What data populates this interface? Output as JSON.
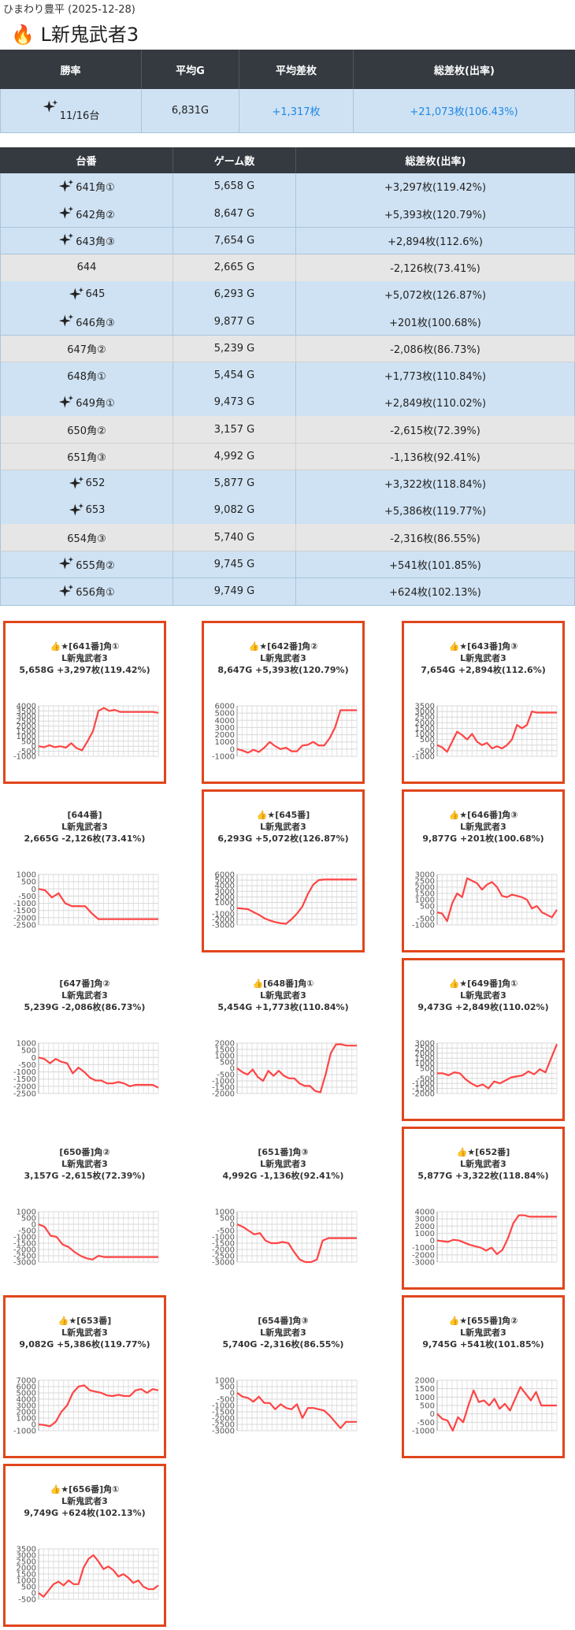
{
  "header": {
    "site": "ひまわり豊平 (2025-12-28)",
    "title": "🔥 L新鬼武者3"
  },
  "summary": {
    "columns": [
      "勝率",
      "平均G",
      "平均差枚",
      "総差枚(出率)"
    ],
    "row": [
      "11/16台",
      "6,831G",
      "+1,317枚",
      "+21,073枚(106.43%)"
    ]
  },
  "machines": {
    "columns": [
      "台番",
      "ゲーム数",
      "総差枚(出率)"
    ],
    "rows": [
      {
        "name": "641角①",
        "games": "5,658 G",
        "result": "+3,297枚(119.42%)",
        "sparkle": true,
        "highlight": true
      },
      {
        "name": "642角②",
        "games": "8,647 G",
        "result": "+5,393枚(120.79%)",
        "sparkle": true,
        "highlight": true
      },
      {
        "name": "643角③",
        "games": "7,654 G",
        "result": "+2,894枚(112.6%)",
        "sparkle": true,
        "highlight": true
      },
      {
        "name": "644",
        "games": "2,665 G",
        "result": "-2,126枚(73.41%)",
        "sparkle": false,
        "highlight": false
      },
      {
        "name": "645",
        "games": "6,293 G",
        "result": "+5,072枚(126.87%)",
        "sparkle": true,
        "highlight": true
      },
      {
        "name": "646角③",
        "games": "9,877 G",
        "result": "+201枚(100.68%)",
        "sparkle": true,
        "highlight": true
      },
      {
        "name": "647角②",
        "games": "5,239 G",
        "result": "-2,086枚(86.73%)",
        "sparkle": false,
        "highlight": false
      },
      {
        "name": "648角①",
        "games": "5,454 G",
        "result": "+1,773枚(110.84%)",
        "sparkle": false,
        "highlight": true
      },
      {
        "name": "649角①",
        "games": "9,473 G",
        "result": "+2,849枚(110.02%)",
        "sparkle": true,
        "highlight": true
      },
      {
        "name": "650角②",
        "games": "3,157 G",
        "result": "-2,615枚(72.39%)",
        "sparkle": false,
        "highlight": false
      },
      {
        "name": "651角③",
        "games": "4,992 G",
        "result": "-1,136枚(92.41%)",
        "sparkle": false,
        "highlight": false
      },
      {
        "name": "652",
        "games": "5,877 G",
        "result": "+3,322枚(118.84%)",
        "sparkle": true,
        "highlight": true
      },
      {
        "name": "653",
        "games": "9,082 G",
        "result": "+5,386枚(119.77%)",
        "sparkle": true,
        "highlight": true
      },
      {
        "name": "654角③",
        "games": "5,740 G",
        "result": "-2,316枚(86.55%)",
        "sparkle": false,
        "highlight": false
      },
      {
        "name": "655角②",
        "games": "9,745 G",
        "result": "+541枚(101.85%)",
        "sparkle": true,
        "highlight": true
      },
      {
        "name": "656角①",
        "games": "9,749 G",
        "result": "+624枚(102.13%)",
        "sparkle": true,
        "highlight": true
      }
    ]
  },
  "cards": [
    {
      "label": "👍★[641番]角①",
      "model": "L新鬼武者3",
      "stats": "5,658G +3,297枚(119.42%)",
      "highlighted": true,
      "chart_data": {
        "type": "line",
        "color": "#ff4444",
        "grid": true,
        "ylim": [
          -1000,
          4000
        ],
        "yticks": [
          4000,
          3500,
          3000,
          2500,
          2000,
          1500,
          1000,
          500,
          0,
          -500,
          -1000
        ],
        "values": [
          0,
          -100,
          100,
          -100,
          0,
          -150,
          300,
          -200,
          -400,
          500,
          1500,
          3500,
          3800,
          3500,
          3600,
          3400,
          3400,
          3400,
          3400,
          3400,
          3400,
          3400,
          3300
        ]
      }
    },
    {
      "label": "👍★[642番]角②",
      "model": "L新鬼武者3",
      "stats": "8,647G +5,393枚(120.79%)",
      "highlighted": true,
      "chart_data": {
        "type": "line",
        "color": "#ff4444",
        "grid": true,
        "ylim": [
          -1000,
          6000
        ],
        "yticks": [
          6000,
          5000,
          4000,
          3000,
          2000,
          1000,
          0,
          -1000
        ],
        "values": [
          0,
          -200,
          -500,
          -100,
          -400,
          200,
          1000,
          400,
          0,
          200,
          -300,
          -300,
          500,
          600,
          1000,
          500,
          500,
          1500,
          3000,
          5400,
          5400,
          5400,
          5400
        ]
      }
    },
    {
      "label": "👍★[643番]角③",
      "model": "L新鬼武者3",
      "stats": "7,654G +2,894枚(112.6%)",
      "highlighted": true,
      "chart_data": {
        "type": "line",
        "color": "#ff4444",
        "grid": true,
        "ylim": [
          -1000,
          3500
        ],
        "yticks": [
          3500,
          3000,
          2500,
          2000,
          1500,
          1000,
          500,
          0,
          -500,
          -1000
        ],
        "values": [
          0,
          -200,
          -600,
          300,
          1200,
          900,
          500,
          1000,
          300,
          0,
          200,
          -300,
          -100,
          -300,
          0,
          500,
          1800,
          1500,
          1800,
          3000,
          2900,
          2900,
          2900,
          2900,
          2900
        ]
      }
    },
    {
      "label": "[644番]",
      "model": "L新鬼武者3",
      "stats": "2,665G -2,126枚(73.41%)",
      "highlighted": false,
      "chart_data": {
        "type": "line",
        "color": "#ff4444",
        "grid": true,
        "ylim": [
          -2500,
          1000
        ],
        "yticks": [
          1000,
          500,
          0,
          -500,
          -1000,
          -1500,
          -2000,
          -2500
        ],
        "values": [
          0,
          -100,
          -600,
          -300,
          -1000,
          -1200,
          -1200,
          -1200,
          -1700,
          -2100,
          -2100,
          -2100,
          -2100,
          -2100,
          -2100,
          -2100,
          -2100,
          -2100,
          -2100
        ]
      }
    },
    {
      "label": "👍★[645番]",
      "model": "L新鬼武者3",
      "stats": "6,293G +5,072枚(126.87%)",
      "highlighted": true,
      "chart_data": {
        "type": "line",
        "color": "#ff4444",
        "grid": true,
        "ylim": [
          -3000,
          6000
        ],
        "yticks": [
          6000,
          5000,
          4000,
          3000,
          2000,
          1000,
          0,
          -1000,
          -2000,
          -3000
        ],
        "values": [
          0,
          -100,
          -200,
          -700,
          -1200,
          -1800,
          -2200,
          -2500,
          -2700,
          -2800,
          -2000,
          -1000,
          300,
          2500,
          4200,
          5000,
          5100,
          5100,
          5100,
          5100,
          5100,
          5100,
          5100
        ]
      }
    },
    {
      "label": "👍★[646番]角③",
      "model": "L新鬼武者3",
      "stats": "9,877G +201枚(100.68%)",
      "highlighted": true,
      "chart_data": {
        "type": "line",
        "color": "#ff4444",
        "grid": true,
        "ylim": [
          -1000,
          3000
        ],
        "yticks": [
          3000,
          2500,
          2000,
          1500,
          1000,
          500,
          0,
          -500,
          -1000
        ],
        "values": [
          0,
          -100,
          -700,
          700,
          1500,
          1200,
          2700,
          2500,
          2300,
          1800,
          2200,
          2400,
          2000,
          1300,
          1200,
          1400,
          1300,
          1200,
          1000,
          300,
          500,
          0,
          -200,
          -400,
          200
        ]
      }
    },
    {
      "label": "[647番]角②",
      "model": "L新鬼武者3",
      "stats": "5,239G -2,086枚(86.73%)",
      "highlighted": false,
      "chart_data": {
        "type": "line",
        "color": "#ff4444",
        "grid": true,
        "ylim": [
          -2500,
          1000
        ],
        "yticks": [
          1000,
          500,
          0,
          -500,
          -1000,
          -1500,
          -2000,
          -2500
        ],
        "values": [
          0,
          -100,
          -400,
          -100,
          -300,
          -400,
          -1100,
          -700,
          -1000,
          -1400,
          -1600,
          -1600,
          -1800,
          -1800,
          -1700,
          -1800,
          -2000,
          -1900,
          -1900,
          -1900,
          -1900,
          -2100
        ]
      }
    },
    {
      "label": "👍[648番]角①",
      "model": "L新鬼武者3",
      "stats": "5,454G +1,773枚(110.84%)",
      "highlighted": false,
      "chart_data": {
        "type": "line",
        "color": "#ff4444",
        "grid": true,
        "ylim": [
          -2000,
          2000
        ],
        "yticks": [
          2000,
          1500,
          1000,
          500,
          0,
          -500,
          -1000,
          -1500,
          -2000
        ],
        "values": [
          0,
          -300,
          -500,
          -100,
          -700,
          -1000,
          -200,
          -600,
          -200,
          -600,
          -800,
          -800,
          -1200,
          -1400,
          -1400,
          -1800,
          -1900,
          -500,
          1200,
          1900,
          1900,
          1800,
          1800,
          1800
        ]
      }
    },
    {
      "label": "👍★[649番]角①",
      "model": "L新鬼武者3",
      "stats": "9,473G +2,849枚(110.02%)",
      "highlighted": true,
      "chart_data": {
        "type": "line",
        "color": "#ff4444",
        "grid": true,
        "ylim": [
          -2000,
          3000
        ],
        "yticks": [
          3000,
          2500,
          2000,
          1500,
          1000,
          500,
          0,
          -500,
          -1000,
          -1500,
          -2000
        ],
        "values": [
          0,
          0,
          -200,
          100,
          0,
          -600,
          -1000,
          -1300,
          -1100,
          -1500,
          -800,
          -1000,
          -700,
          -400,
          -300,
          -200,
          200,
          -100,
          400,
          100,
          1500,
          2900
        ]
      }
    },
    {
      "label": "[650番]角②",
      "model": "L新鬼武者3",
      "stats": "3,157G -2,615枚(72.39%)",
      "highlighted": false,
      "chart_data": {
        "type": "line",
        "color": "#ff4444",
        "grid": true,
        "ylim": [
          -3000,
          1000
        ],
        "yticks": [
          1000,
          500,
          0,
          -500,
          -1000,
          -1500,
          -2000,
          -2500,
          -3000
        ],
        "values": [
          0,
          -200,
          -900,
          -1000,
          -1600,
          -1800,
          -2200,
          -2500,
          -2700,
          -2800,
          -2500,
          -2600,
          -2600,
          -2600,
          -2600,
          -2600,
          -2600,
          -2600,
          -2600,
          -2600,
          -2600
        ]
      }
    },
    {
      "label": "[651番]角③",
      "model": "L新鬼武者3",
      "stats": "4,992G -1,136枚(92.41%)",
      "highlighted": false,
      "chart_data": {
        "type": "line",
        "color": "#ff4444",
        "grid": true,
        "ylim": [
          -3000,
          1000
        ],
        "yticks": [
          1000,
          500,
          0,
          -500,
          -1000,
          -1500,
          -2000,
          -2500,
          -3000
        ],
        "values": [
          0,
          -200,
          -500,
          -800,
          -700,
          -1300,
          -1500,
          -1500,
          -1400,
          -1500,
          -2200,
          -2800,
          -3000,
          -3000,
          -2800,
          -1300,
          -1100,
          -1100,
          -1100,
          -1100,
          -1100,
          -1100
        ]
      }
    },
    {
      "label": "👍★[652番]",
      "model": "L新鬼武者3",
      "stats": "5,877G +3,322枚(118.84%)",
      "highlighted": true,
      "chart_data": {
        "type": "line",
        "color": "#ff4444",
        "grid": true,
        "ylim": [
          -3000,
          4000
        ],
        "yticks": [
          4000,
          3000,
          2000,
          1000,
          0,
          -1000,
          -2000,
          -3000
        ],
        "values": [
          0,
          -100,
          -200,
          100,
          0,
          -300,
          -600,
          -800,
          -1000,
          -1400,
          -1000,
          -1900,
          -1300,
          300,
          2400,
          3500,
          3500,
          3300,
          3300,
          3300,
          3300,
          3300,
          3300
        ]
      }
    },
    {
      "label": "👍★[653番]",
      "model": "L新鬼武者3",
      "stats": "9,082G +5,386枚(119.77%)",
      "highlighted": true,
      "chart_data": {
        "type": "line",
        "color": "#ff4444",
        "grid": true,
        "ylim": [
          -1000,
          7000
        ],
        "yticks": [
          7000,
          6000,
          5000,
          4000,
          3000,
          2000,
          1000,
          0,
          -1000
        ],
        "values": [
          0,
          -100,
          -300,
          400,
          2000,
          3000,
          5000,
          6000,
          6200,
          5400,
          5200,
          5000,
          4600,
          4500,
          4700,
          4500,
          4500,
          5400,
          5600,
          5000,
          5600,
          5400
        ]
      }
    },
    {
      "label": "[654番]角③",
      "model": "L新鬼武者3",
      "stats": "5,740G -2,316枚(86.55%)",
      "highlighted": false,
      "chart_data": {
        "type": "line",
        "color": "#ff4444",
        "grid": true,
        "ylim": [
          -3000,
          1000
        ],
        "yticks": [
          1000,
          500,
          0,
          -500,
          -1000,
          -1500,
          -2000,
          -2500,
          -3000
        ],
        "values": [
          0,
          -300,
          -400,
          -700,
          -300,
          -800,
          -800,
          -1300,
          -900,
          -1200,
          -1300,
          -900,
          -2000,
          -1200,
          -1200,
          -1300,
          -1400,
          -1800,
          -2300,
          -2800,
          -2300,
          -2300,
          -2300
        ]
      }
    },
    {
      "label": "👍★[655番]角②",
      "model": "L新鬼武者3",
      "stats": "9,745G +541枚(101.85%)",
      "highlighted": true,
      "chart_data": {
        "type": "line",
        "color": "#ff4444",
        "grid": true,
        "ylim": [
          -1000,
          2000
        ],
        "yticks": [
          2000,
          1500,
          1000,
          500,
          0,
          -500,
          -1000
        ],
        "values": [
          0,
          -300,
          -400,
          -1000,
          -200,
          -500,
          500,
          1400,
          700,
          800,
          500,
          900,
          300,
          600,
          200,
          900,
          1600,
          1200,
          800,
          1300,
          500,
          500,
          500,
          500
        ]
      }
    },
    {
      "label": "👍★[656番]角①",
      "model": "L新鬼武者3",
      "stats": "9,749G +624枚(102.13%)",
      "highlighted": true,
      "chart_data": {
        "type": "line",
        "color": "#ff4444",
        "grid": true,
        "ylim": [
          -500,
          3500
        ],
        "yticks": [
          3500,
          3000,
          2500,
          2000,
          1500,
          1000,
          500,
          0,
          -500
        ],
        "values": [
          0,
          -300,
          200,
          700,
          900,
          600,
          1000,
          700,
          700,
          2000,
          2700,
          3000,
          2500,
          1900,
          2100,
          1800,
          1300,
          1500,
          1200,
          800,
          1000,
          500,
          300,
          300,
          600
        ]
      }
    }
  ]
}
